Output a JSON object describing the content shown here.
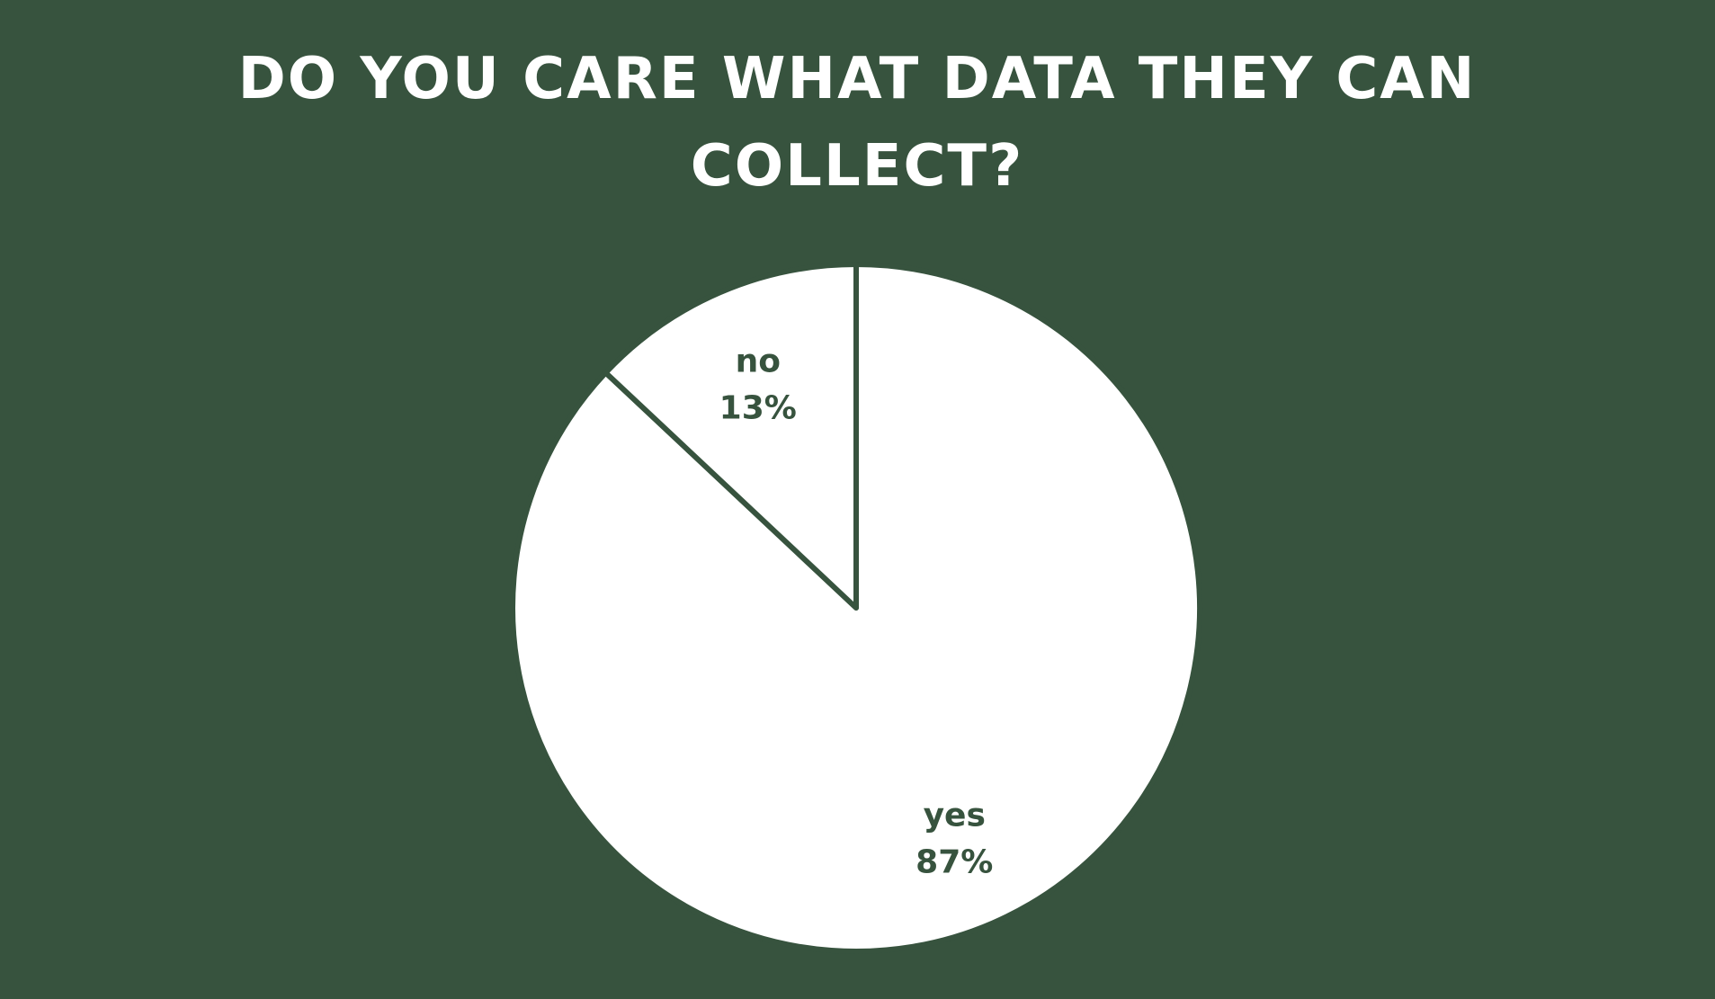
{
  "chart_data": {
    "type": "pie",
    "title": "DO YOU CARE WHAT DATA THEY CAN COLLECT?",
    "slices": [
      {
        "label": "yes",
        "value": 87,
        "value_label": "87%"
      },
      {
        "label": "no",
        "value": 13,
        "value_label": "13%"
      }
    ],
    "legend": "none",
    "data_labels": "inside",
    "start_angle_deg": 0,
    "direction": "clockwise"
  },
  "colors": {
    "background": "#37533e",
    "slice_fill": "#ffffff",
    "slice_border": "#37533e",
    "title_text": "#ffffff",
    "label_text": "#37533e"
  }
}
